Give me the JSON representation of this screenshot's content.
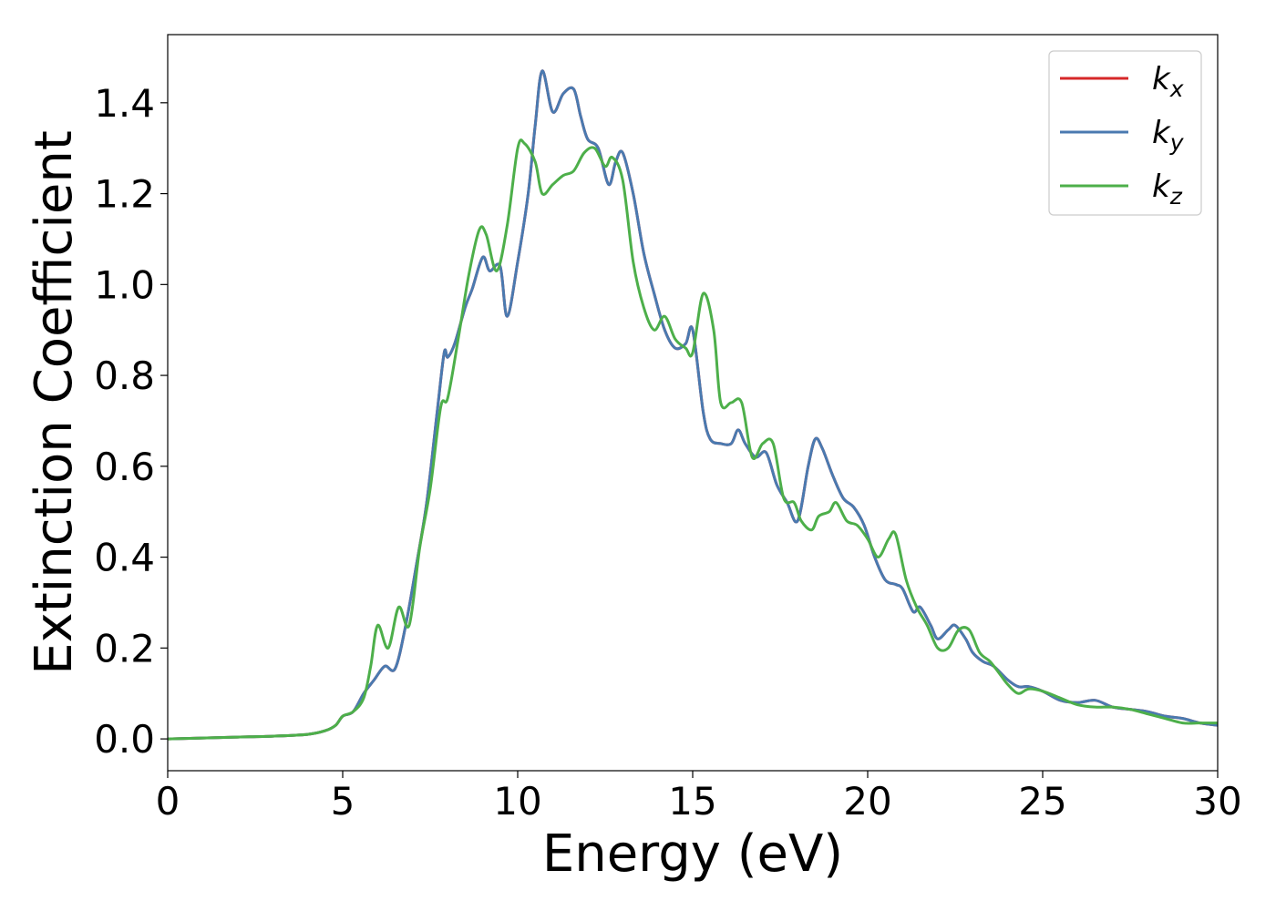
{
  "chart_data": {
    "type": "line",
    "title": "",
    "xlabel": "Energy (eV)",
    "ylabel": "Extinction Coefficient",
    "xlim": [
      0,
      30
    ],
    "ylim": [
      -0.07,
      1.55
    ],
    "xticks": [
      0,
      5,
      10,
      15,
      20,
      25,
      30
    ],
    "xtick_labels": [
      "0",
      "5",
      "10",
      "15",
      "20",
      "25",
      "30"
    ],
    "yticks": [
      0.0,
      0.2,
      0.4,
      0.6,
      0.8,
      1.0,
      1.2,
      1.4
    ],
    "ytick_labels": [
      "0.0",
      "0.2",
      "0.4",
      "0.6",
      "0.8",
      "1.0",
      "1.2",
      "1.4"
    ],
    "grid": false,
    "legend": {
      "position": "top-right"
    },
    "series": [
      {
        "name": "k_x",
        "legend_base": "k",
        "legend_sub": "x",
        "color": "#d62728",
        "x": [
          0,
          1,
          2,
          3,
          4,
          4.5,
          4.8,
          5.0,
          5.3,
          5.6,
          5.9,
          6.2,
          6.5,
          6.8,
          7.1,
          7.4,
          7.7,
          7.9,
          8.0,
          8.2,
          8.5,
          8.7,
          9.0,
          9.2,
          9.5,
          9.7,
          10.0,
          10.3,
          10.5,
          10.7,
          11.0,
          11.3,
          11.6,
          11.8,
          12.0,
          12.3,
          12.6,
          12.8,
          13.0,
          13.3,
          13.6,
          13.9,
          14.2,
          14.5,
          14.8,
          15.0,
          15.3,
          15.5,
          15.8,
          16.1,
          16.3,
          16.5,
          16.8,
          17.1,
          17.4,
          17.7,
          18.0,
          18.3,
          18.5,
          18.7,
          19.0,
          19.3,
          19.6,
          19.9,
          20.2,
          20.5,
          20.8,
          21.0,
          21.3,
          21.5,
          21.8,
          22.0,
          22.3,
          22.5,
          22.8,
          23.0,
          23.3,
          23.6,
          24.0,
          24.3,
          24.6,
          25.0,
          25.5,
          26.0,
          26.5,
          27.0,
          27.5,
          28.0,
          28.5,
          29.0,
          29.5,
          30
        ],
        "y": [
          0.0,
          0.002,
          0.004,
          0.006,
          0.01,
          0.018,
          0.03,
          0.05,
          0.06,
          0.1,
          0.13,
          0.16,
          0.155,
          0.25,
          0.38,
          0.52,
          0.72,
          0.85,
          0.84,
          0.87,
          0.95,
          0.99,
          1.06,
          1.03,
          1.04,
          0.93,
          1.05,
          1.2,
          1.35,
          1.47,
          1.38,
          1.42,
          1.43,
          1.37,
          1.32,
          1.3,
          1.22,
          1.27,
          1.29,
          1.2,
          1.07,
          0.98,
          0.9,
          0.86,
          0.87,
          0.9,
          0.72,
          0.66,
          0.65,
          0.65,
          0.68,
          0.65,
          0.62,
          0.63,
          0.56,
          0.52,
          0.48,
          0.6,
          0.66,
          0.64,
          0.58,
          0.53,
          0.51,
          0.47,
          0.4,
          0.35,
          0.34,
          0.33,
          0.28,
          0.29,
          0.25,
          0.22,
          0.24,
          0.25,
          0.22,
          0.19,
          0.17,
          0.16,
          0.13,
          0.115,
          0.115,
          0.105,
          0.085,
          0.08,
          0.085,
          0.07,
          0.065,
          0.06,
          0.05,
          0.045,
          0.035,
          0.03
        ]
      },
      {
        "name": "k_y",
        "legend_base": "k",
        "legend_sub": "y",
        "color": "#4a7ab0",
        "x": [
          0,
          1,
          2,
          3,
          4,
          4.5,
          4.8,
          5.0,
          5.3,
          5.6,
          5.9,
          6.2,
          6.5,
          6.8,
          7.1,
          7.4,
          7.7,
          7.9,
          8.0,
          8.2,
          8.5,
          8.7,
          9.0,
          9.2,
          9.5,
          9.7,
          10.0,
          10.3,
          10.5,
          10.7,
          11.0,
          11.3,
          11.6,
          11.8,
          12.0,
          12.3,
          12.6,
          12.8,
          13.0,
          13.3,
          13.6,
          13.9,
          14.2,
          14.5,
          14.8,
          15.0,
          15.3,
          15.5,
          15.8,
          16.1,
          16.3,
          16.5,
          16.8,
          17.1,
          17.4,
          17.7,
          18.0,
          18.3,
          18.5,
          18.7,
          19.0,
          19.3,
          19.6,
          19.9,
          20.2,
          20.5,
          20.8,
          21.0,
          21.3,
          21.5,
          21.8,
          22.0,
          22.3,
          22.5,
          22.8,
          23.0,
          23.3,
          23.6,
          24.0,
          24.3,
          24.6,
          25.0,
          25.5,
          26.0,
          26.5,
          27.0,
          27.5,
          28.0,
          28.5,
          29.0,
          29.5,
          30
        ],
        "y": [
          0.0,
          0.002,
          0.004,
          0.006,
          0.01,
          0.018,
          0.03,
          0.05,
          0.06,
          0.1,
          0.13,
          0.16,
          0.155,
          0.25,
          0.38,
          0.52,
          0.72,
          0.85,
          0.84,
          0.87,
          0.95,
          0.99,
          1.06,
          1.03,
          1.04,
          0.93,
          1.05,
          1.2,
          1.35,
          1.47,
          1.38,
          1.42,
          1.43,
          1.37,
          1.32,
          1.3,
          1.22,
          1.27,
          1.29,
          1.2,
          1.07,
          0.98,
          0.9,
          0.86,
          0.87,
          0.9,
          0.72,
          0.66,
          0.65,
          0.65,
          0.68,
          0.65,
          0.62,
          0.63,
          0.56,
          0.52,
          0.48,
          0.6,
          0.66,
          0.64,
          0.58,
          0.53,
          0.51,
          0.47,
          0.4,
          0.35,
          0.34,
          0.33,
          0.28,
          0.29,
          0.25,
          0.22,
          0.24,
          0.25,
          0.22,
          0.19,
          0.17,
          0.16,
          0.13,
          0.115,
          0.115,
          0.105,
          0.085,
          0.08,
          0.085,
          0.07,
          0.065,
          0.06,
          0.05,
          0.045,
          0.035,
          0.03
        ]
      },
      {
        "name": "k_z",
        "legend_base": "k",
        "legend_sub": "z",
        "color": "#4daf4a",
        "x": [
          0,
          1,
          2,
          3,
          4,
          4.5,
          4.8,
          5.0,
          5.3,
          5.6,
          5.8,
          6.0,
          6.3,
          6.6,
          6.9,
          7.2,
          7.5,
          7.8,
          8.0,
          8.3,
          8.6,
          8.9,
          9.1,
          9.4,
          9.7,
          10.0,
          10.2,
          10.5,
          10.7,
          11.0,
          11.3,
          11.6,
          11.9,
          12.2,
          12.5,
          12.7,
          13.0,
          13.3,
          13.6,
          13.9,
          14.2,
          14.5,
          14.8,
          15.0,
          15.3,
          15.6,
          15.8,
          16.1,
          16.4,
          16.7,
          17.0,
          17.3,
          17.6,
          17.9,
          18.1,
          18.4,
          18.6,
          18.9,
          19.1,
          19.4,
          19.7,
          20.0,
          20.3,
          20.6,
          20.8,
          21.1,
          21.4,
          21.7,
          22.0,
          22.3,
          22.6,
          22.9,
          23.2,
          23.5,
          23.8,
          24.0,
          24.3,
          24.6,
          25.0,
          25.5,
          26.0,
          26.5,
          27.0,
          27.5,
          28.0,
          28.5,
          29.0,
          29.5,
          30
        ],
        "y": [
          0.0,
          0.002,
          0.004,
          0.006,
          0.01,
          0.018,
          0.03,
          0.05,
          0.06,
          0.09,
          0.16,
          0.25,
          0.2,
          0.29,
          0.25,
          0.42,
          0.55,
          0.73,
          0.75,
          0.88,
          1.02,
          1.12,
          1.11,
          1.03,
          1.13,
          1.3,
          1.31,
          1.27,
          1.2,
          1.22,
          1.24,
          1.25,
          1.29,
          1.3,
          1.26,
          1.28,
          1.23,
          1.05,
          0.95,
          0.9,
          0.93,
          0.88,
          0.86,
          0.85,
          0.98,
          0.9,
          0.74,
          0.74,
          0.74,
          0.62,
          0.65,
          0.65,
          0.53,
          0.52,
          0.48,
          0.46,
          0.49,
          0.5,
          0.52,
          0.48,
          0.47,
          0.44,
          0.4,
          0.44,
          0.45,
          0.35,
          0.29,
          0.25,
          0.2,
          0.2,
          0.24,
          0.24,
          0.19,
          0.17,
          0.14,
          0.12,
          0.1,
          0.11,
          0.105,
          0.09,
          0.075,
          0.07,
          0.07,
          0.065,
          0.055,
          0.045,
          0.035,
          0.035,
          0.035
        ]
      }
    ]
  }
}
